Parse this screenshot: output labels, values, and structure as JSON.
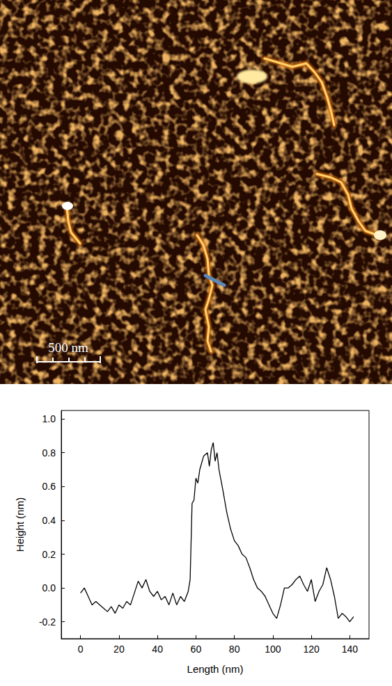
{
  "image": {
    "scale_bar": "500 nm"
  },
  "chart_data": {
    "type": "line",
    "x_label": "Length (nm)",
    "y_label": "Height (nm)",
    "x": [
      0,
      2,
      4,
      6,
      8,
      10,
      12,
      14,
      16,
      18,
      20,
      22,
      24,
      26,
      28,
      30,
      32,
      34,
      36,
      38,
      40,
      42,
      44,
      46,
      48,
      50,
      52,
      54,
      56,
      57,
      58,
      59,
      60,
      61,
      62,
      64,
      66,
      67,
      68,
      69,
      70,
      71,
      72,
      74,
      76,
      78,
      80,
      82,
      84,
      86,
      88,
      90,
      92,
      94,
      96,
      98,
      100,
      102,
      104,
      106,
      108,
      110,
      112,
      114,
      116,
      118,
      120,
      122,
      124,
      126,
      128,
      130,
      132,
      134,
      136,
      138,
      140,
      142
    ],
    "values": [
      -0.03,
      0.0,
      -0.05,
      -0.1,
      -0.08,
      -0.1,
      -0.12,
      -0.14,
      -0.11,
      -0.15,
      -0.1,
      -0.12,
      -0.08,
      -0.1,
      -0.03,
      0.04,
      0.0,
      0.05,
      -0.02,
      -0.05,
      -0.02,
      -0.07,
      -0.05,
      -0.1,
      -0.03,
      -0.1,
      -0.05,
      -0.08,
      -0.02,
      0.05,
      0.5,
      0.52,
      0.65,
      0.62,
      0.7,
      0.78,
      0.8,
      0.72,
      0.82,
      0.86,
      0.75,
      0.8,
      0.7,
      0.58,
      0.45,
      0.35,
      0.28,
      0.25,
      0.2,
      0.18,
      0.12,
      0.05,
      0.0,
      -0.02,
      -0.05,
      -0.1,
      -0.15,
      -0.18,
      -0.1,
      0.0,
      0.0,
      0.02,
      0.05,
      0.07,
      0.02,
      -0.02,
      0.05,
      -0.08,
      -0.02,
      0.02,
      0.12,
      0.05,
      -0.05,
      -0.18,
      -0.15,
      -0.17,
      -0.2,
      -0.17
    ],
    "color": "#000000",
    "xlim": [
      -10,
      150
    ],
    "xticks": [
      0,
      20,
      40,
      60,
      80,
      100,
      120,
      140
    ],
    "ylim": [
      -0.3,
      1.05
    ],
    "yticks": [
      -0.2,
      {
        "value": 0,
        "label": "0.0"
      },
      0.2,
      0.4,
      0.6,
      0.8,
      {
        "value": 1,
        "label": "1.0"
      }
    ],
    "grid": false
  }
}
